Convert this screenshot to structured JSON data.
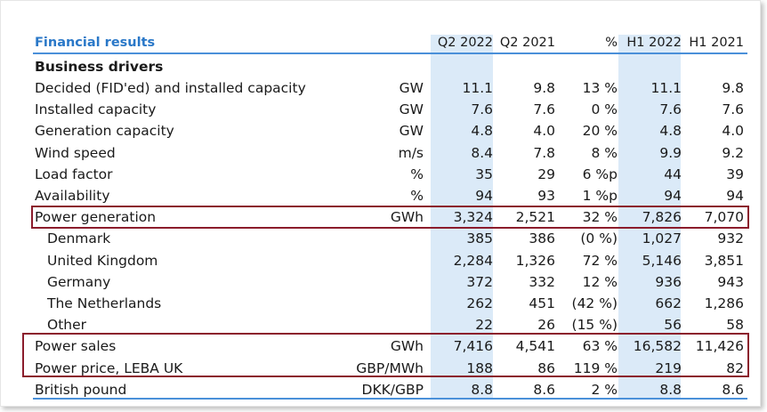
{
  "table": {
    "header": {
      "title": "Financial results",
      "cols": [
        "Q2 2022",
        "Q2 2021",
        "%",
        "H1 2022",
        "H1 2021"
      ]
    },
    "section": "Business drivers",
    "rows": [
      {
        "label": "Decided (FID'ed) and installed capacity",
        "unit": "GW",
        "v": [
          "11.1",
          "9.8",
          "13 %",
          "11.1",
          "9.8"
        ]
      },
      {
        "label": "Installed capacity",
        "unit": "GW",
        "v": [
          "7.6",
          "7.6",
          "0 %",
          "7.6",
          "7.6"
        ]
      },
      {
        "label": "Generation capacity",
        "unit": "GW",
        "v": [
          "4.8",
          "4.0",
          "20 %",
          "4.8",
          "4.0"
        ]
      },
      {
        "label": "Wind speed",
        "unit": "m/s",
        "v": [
          "8.4",
          "7.8",
          "8 %",
          "9.9",
          "9.2"
        ]
      },
      {
        "label": "Load factor",
        "unit": "%",
        "v": [
          "35",
          "29",
          "6 %p",
          "44",
          "39"
        ]
      },
      {
        "label": "Availability",
        "unit": "%",
        "v": [
          "94",
          "93",
          "1 %p",
          "94",
          "94"
        ]
      },
      {
        "label": "Power generation",
        "unit": "GWh",
        "v": [
          "3,324",
          "2,521",
          "32 %",
          "7,826",
          "7,070"
        ]
      },
      {
        "label": "Denmark",
        "unit": "",
        "v": [
          "385",
          "386",
          "(0 %)",
          "1,027",
          "932"
        ]
      },
      {
        "label": "United Kingdom",
        "unit": "",
        "v": [
          "2,284",
          "1,326",
          "72 %",
          "5,146",
          "3,851"
        ]
      },
      {
        "label": "Germany",
        "unit": "",
        "v": [
          "372",
          "332",
          "12 %",
          "936",
          "943"
        ]
      },
      {
        "label": "The Netherlands",
        "unit": "",
        "v": [
          "262",
          "451",
          "(42 %)",
          "662",
          "1,286"
        ]
      },
      {
        "label": "Other",
        "unit": "",
        "v": [
          "22",
          "26",
          "(15 %)",
          "56",
          "58"
        ]
      },
      {
        "label": "Power sales",
        "unit": "GWh",
        "v": [
          "7,416",
          "4,541",
          "63 %",
          "16,582",
          "11,426"
        ]
      },
      {
        "label": "Power price, LEBA UK",
        "unit": "GBP/MWh",
        "v": [
          "188",
          "86",
          "119 %",
          "219",
          "82"
        ]
      },
      {
        "label": "British pound",
        "unit": "DKK/GBP",
        "v": [
          "8.8",
          "8.6",
          "2 %",
          "8.8",
          "8.6"
        ]
      }
    ]
  },
  "colors": {
    "accent": "#2a78c8",
    "highlight_band": "#dbeaf8",
    "box_border": "#8b1c2c"
  }
}
